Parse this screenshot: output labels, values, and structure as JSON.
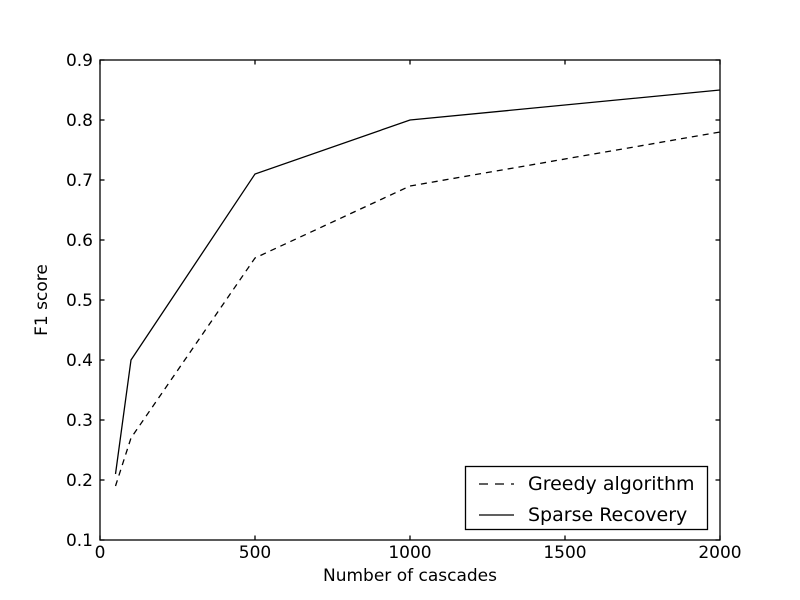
{
  "figure": {
    "background": "#ffffff"
  },
  "chart_data": {
    "type": "line",
    "title": "",
    "xlabel": "Number of cascades",
    "ylabel": "F1 score",
    "xlim": [
      0,
      2000
    ],
    "ylim": [
      0.1,
      0.9
    ],
    "xticks": [
      0,
      500,
      1000,
      1500,
      2000
    ],
    "xtick_labels": [
      "0",
      "500",
      "1000",
      "1500",
      "2000"
    ],
    "yticks": [
      0.1,
      0.2,
      0.3,
      0.4,
      0.5,
      0.6,
      0.7,
      0.8,
      0.9
    ],
    "ytick_labels": [
      "0.1",
      "0.2",
      "0.3",
      "0.4",
      "0.5",
      "0.6",
      "0.7",
      "0.8",
      "0.9"
    ],
    "grid": false,
    "legend_position": "lower right",
    "axis_color": "#000000",
    "background_color": "#ffffff",
    "series": [
      {
        "name": "Greedy algorithm",
        "linestyle": "dashed",
        "color": "#000000",
        "x": [
          50,
          100,
          500,
          1000,
          2000
        ],
        "y": [
          0.19,
          0.27,
          0.57,
          0.69,
          0.78
        ]
      },
      {
        "name": "Sparse Recovery",
        "linestyle": "solid",
        "color": "#000000",
        "x": [
          50,
          100,
          500,
          1000,
          2000
        ],
        "y": [
          0.21,
          0.4,
          0.71,
          0.8,
          0.85
        ]
      }
    ]
  }
}
